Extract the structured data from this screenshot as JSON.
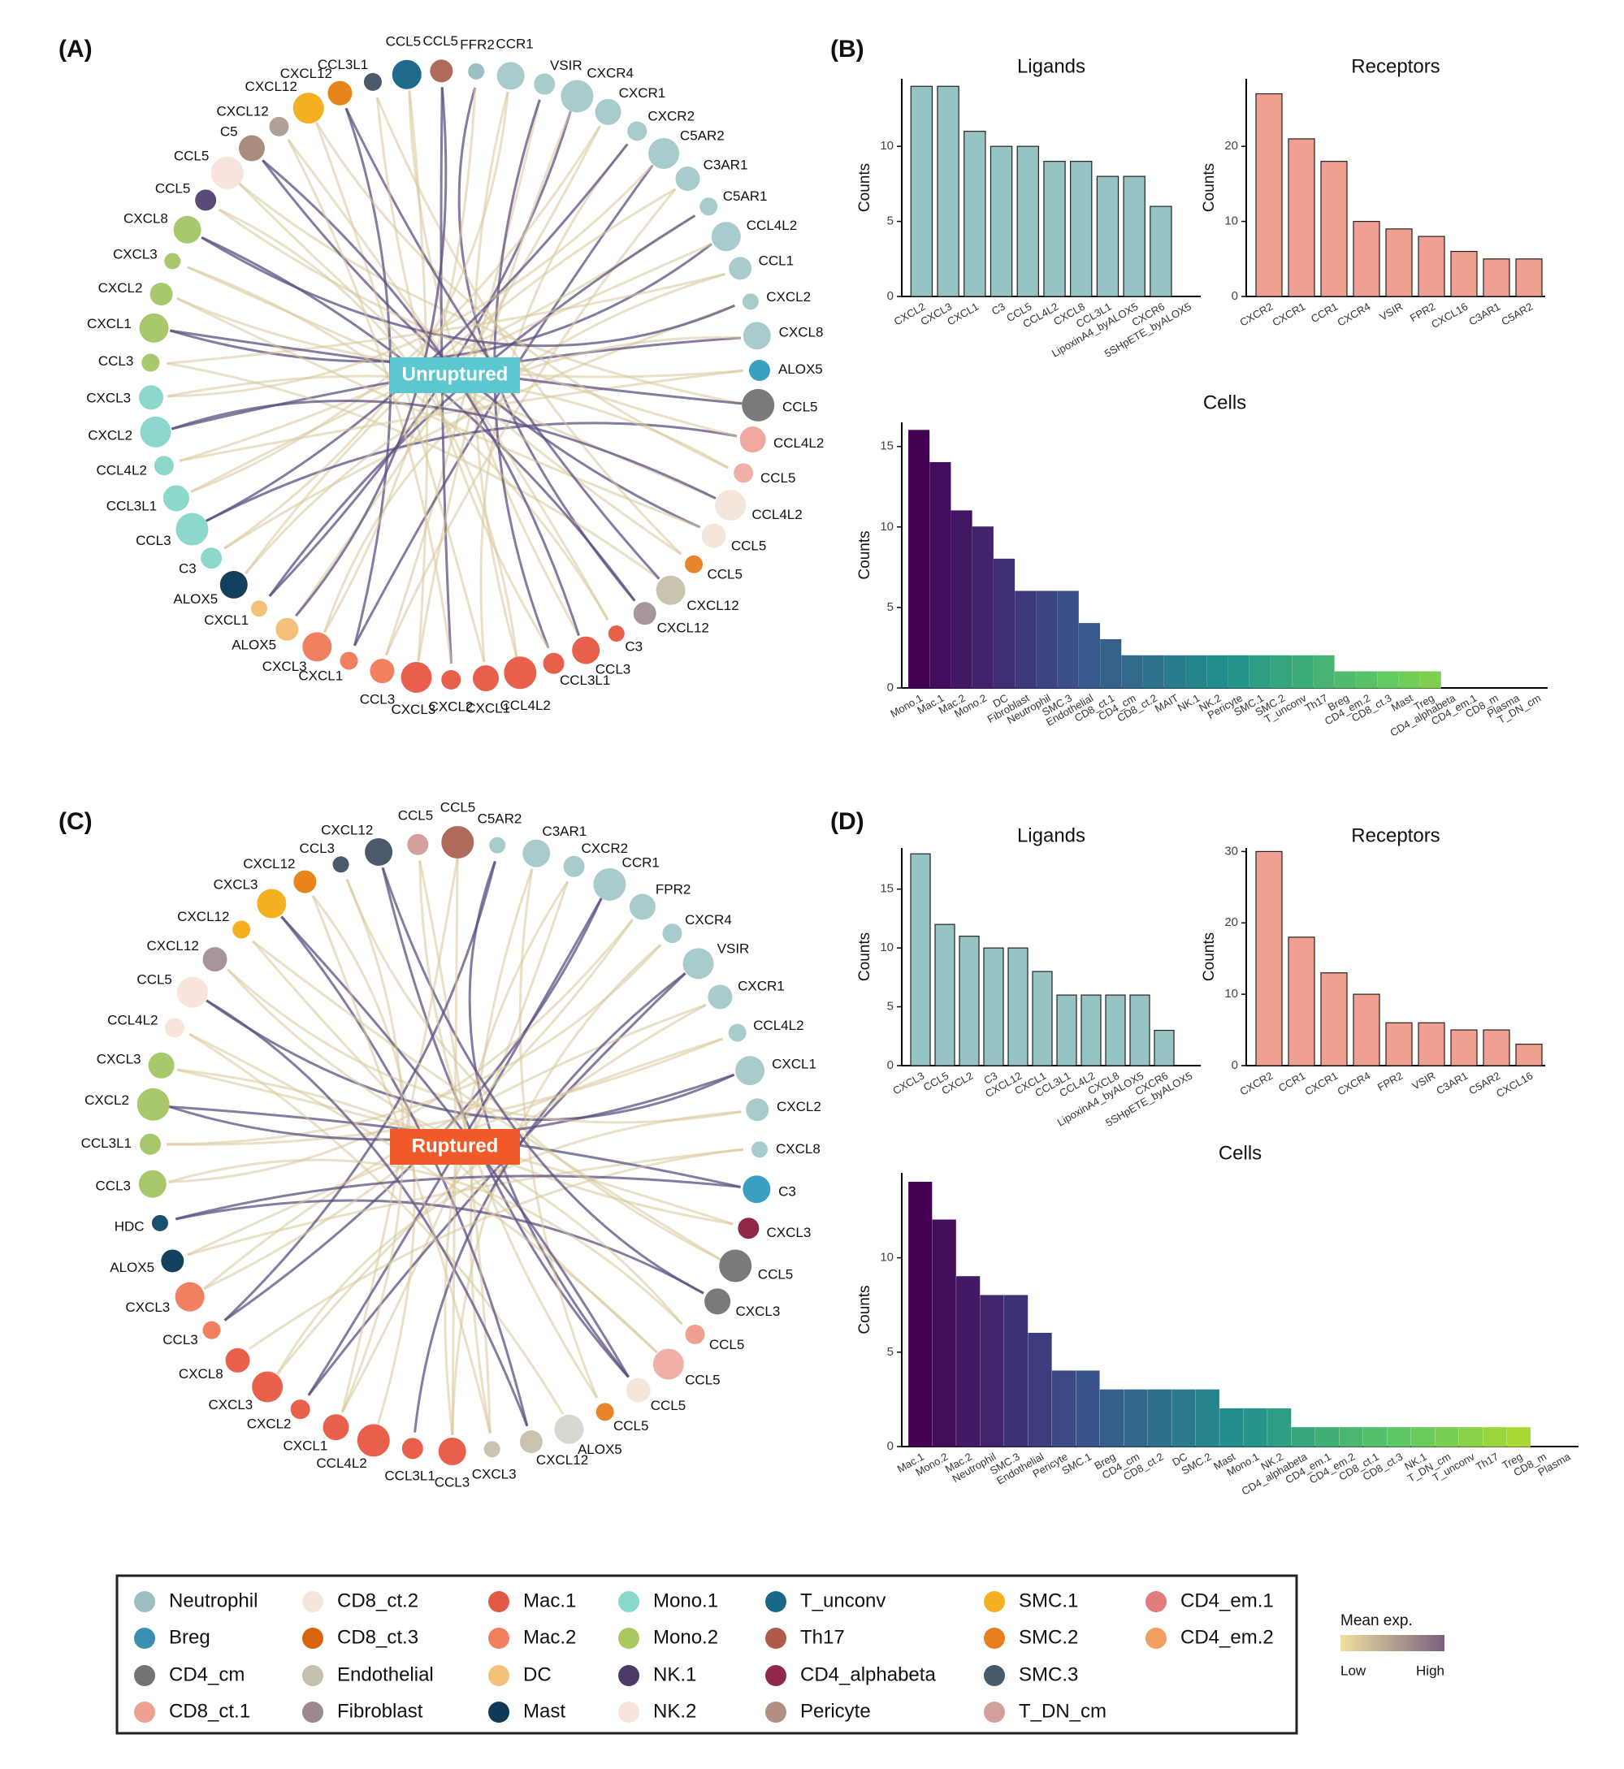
{
  "panels": [
    "(A)",
    "(B)",
    "(C)",
    "(D)"
  ],
  "circles": [
    {
      "label": "Unruptured",
      "nodes": [
        {
          "label": "FFR2",
          "color": "#9dbfc4"
        },
        {
          "label": "CCR1",
          "color": "#a8cccc"
        },
        {
          "label": "VSIR",
          "color": "#a8cccc"
        },
        {
          "label": "CXCR4",
          "color": "#a8cccc"
        },
        {
          "label": "CXCR1",
          "color": "#a8cccc"
        },
        {
          "label": "CXCR2",
          "color": "#a8cccc"
        },
        {
          "label": "C5AR2",
          "color": "#a8cccc"
        },
        {
          "label": "C3AR1",
          "color": "#a8cccc"
        },
        {
          "label": "C5AR1",
          "color": "#a8cccc"
        },
        {
          "label": "CCL4L2",
          "color": "#a8cccc"
        },
        {
          "label": "CCL1",
          "color": "#a8cccc"
        },
        {
          "label": "CXCL2",
          "color": "#a8cccc"
        },
        {
          "label": "CXCL8",
          "color": "#a8cccc"
        },
        {
          "label": "ALOX5",
          "color": "#3a9fc0"
        },
        {
          "label": "CCL5",
          "color": "#7a7a7a"
        },
        {
          "label": "CCL4L2",
          "color": "#f0a8a0"
        },
        {
          "label": "CCL5",
          "color": "#f0b0a8"
        },
        {
          "label": "CCL4L2",
          "color": "#f5e6dc"
        },
        {
          "label": "CCL5",
          "color": "#f5e6dc"
        },
        {
          "label": "CCL5",
          "color": "#e8842c"
        },
        {
          "label": "CXCL12",
          "color": "#c8c4b0"
        },
        {
          "label": "CXCL12",
          "color": "#a8949c"
        },
        {
          "label": "C3",
          "color": "#e8604c"
        },
        {
          "label": "CCL3",
          "color": "#e8604c"
        },
        {
          "label": "CCL3L1",
          "color": "#e8604c"
        },
        {
          "label": "CCL4L2",
          "color": "#e8604c"
        },
        {
          "label": "CXCL1",
          "color": "#e8604c"
        },
        {
          "label": "CXCL2",
          "color": "#e8604c"
        },
        {
          "label": "CXCL3",
          "color": "#e8604c"
        },
        {
          "label": "CCL3",
          "color": "#f08060"
        },
        {
          "label": "CXCL1",
          "color": "#f08060"
        },
        {
          "label": "CXCL3",
          "color": "#f08060"
        },
        {
          "label": "ALOX5",
          "color": "#f5c07a"
        },
        {
          "label": "CXCL1",
          "color": "#f5c07a"
        },
        {
          "label": "ALOX5",
          "color": "#12405e"
        },
        {
          "label": "C3",
          "color": "#8cd8cc"
        },
        {
          "label": "CCL3",
          "color": "#8cd8cc"
        },
        {
          "label": "CCL3L1",
          "color": "#8cd8cc"
        },
        {
          "label": "CCL4L2",
          "color": "#8cd8cc"
        },
        {
          "label": "CXCL2",
          "color": "#8cd8cc"
        },
        {
          "label": "CXCL3",
          "color": "#8cd8cc"
        },
        {
          "label": "CCL3",
          "color": "#a8c86c"
        },
        {
          "label": "CXCL1",
          "color": "#a8c86c"
        },
        {
          "label": "CXCL2",
          "color": "#a8c86c"
        },
        {
          "label": "CXCL3",
          "color": "#a8c86c"
        },
        {
          "label": "CXCL8",
          "color": "#a8c86c"
        },
        {
          "label": "CCL5",
          "color": "#5a4a78"
        },
        {
          "label": "CCL5",
          "color": "#f8e4dc"
        },
        {
          "label": "C5",
          "color": "#a88c80"
        },
        {
          "label": "CXCL12",
          "color": "#b0a098"
        },
        {
          "label": "CXCL12",
          "color": "#f5b020"
        },
        {
          "label": "CXCL12",
          "color": "#e8841c"
        },
        {
          "label": "CCL3L1",
          "color": "#4a5a6a"
        },
        {
          "label": "CCL5",
          "color": "#1e6a8a"
        },
        {
          "label": "CCL5",
          "color": "#b06a5a"
        }
      ]
    },
    {
      "label": "Ruptured",
      "nodes": [
        {
          "label": "C5AR2",
          "color": "#a8cccc"
        },
        {
          "label": "C3AR1",
          "color": "#a8cccc"
        },
        {
          "label": "CXCR2",
          "color": "#a8cccc"
        },
        {
          "label": "CCR1",
          "color": "#a8cccc"
        },
        {
          "label": "FPR2",
          "color": "#a8cccc"
        },
        {
          "label": "CXCR4",
          "color": "#a8cccc"
        },
        {
          "label": "VSIR",
          "color": "#a8cccc"
        },
        {
          "label": "CXCR1",
          "color": "#a8cccc"
        },
        {
          "label": "CCL4L2",
          "color": "#a8cccc"
        },
        {
          "label": "CXCL1",
          "color": "#a8cccc"
        },
        {
          "label": "CXCL2",
          "color": "#a8cccc"
        },
        {
          "label": "CXCL8",
          "color": "#a8cccc"
        },
        {
          "label": "C3",
          "color": "#3a9fc0"
        },
        {
          "label": "CXCL3",
          "color": "#902848"
        },
        {
          "label": "CCL5",
          "color": "#7a7a7a"
        },
        {
          "label": "CXCL3",
          "color": "#7a7a7a"
        },
        {
          "label": "CCL5",
          "color": "#f0a090"
        },
        {
          "label": "CCL5",
          "color": "#f0b0a8"
        },
        {
          "label": "CCL5",
          "color": "#f5e6dc"
        },
        {
          "label": "CCL5",
          "color": "#e8842c"
        },
        {
          "label": "ALOX5",
          "color": "#d8d8d0"
        },
        {
          "label": "CXCL12",
          "color": "#c8c4b0"
        },
        {
          "label": "CXCL3",
          "color": "#c8c4b0"
        },
        {
          "label": "CCL3",
          "color": "#e8604c"
        },
        {
          "label": "CCL3L1",
          "color": "#e8604c"
        },
        {
          "label": "CCL4L2",
          "color": "#e8604c"
        },
        {
          "label": "CXCL1",
          "color": "#e8604c"
        },
        {
          "label": "CXCL2",
          "color": "#e8604c"
        },
        {
          "label": "CXCL3",
          "color": "#e8604c"
        },
        {
          "label": "CXCL8",
          "color": "#e8604c"
        },
        {
          "label": "CCL3",
          "color": "#f08060"
        },
        {
          "label": "CXCL3",
          "color": "#f08060"
        },
        {
          "label": "ALOX5",
          "color": "#12405e"
        },
        {
          "label": "HDC",
          "color": "#1a5070"
        },
        {
          "label": "CCL3",
          "color": "#a8c86c"
        },
        {
          "label": "CCL3L1",
          "color": "#a8c86c"
        },
        {
          "label": "CXCL2",
          "color": "#a8c86c"
        },
        {
          "label": "CXCL3",
          "color": "#a8c86c"
        },
        {
          "label": "CCL4L2",
          "color": "#f8e4dc"
        },
        {
          "label": "CCL5",
          "color": "#f8e4dc"
        },
        {
          "label": "CXCL12",
          "color": "#a8949c"
        },
        {
          "label": "CXCL12",
          "color": "#f5b020"
        },
        {
          "label": "CXCL3",
          "color": "#f5b020"
        },
        {
          "label": "CXCL12",
          "color": "#e8841c"
        },
        {
          "label": "CCL3",
          "color": "#4a5a6a"
        },
        {
          "label": "CXCL12",
          "color": "#4a5a6a"
        },
        {
          "label": "CCL5",
          "color": "#d4a09c"
        },
        {
          "label": "CCL5",
          "color": "#b06a5a"
        }
      ]
    }
  ],
  "chart_data": [
    {
      "type": "bar",
      "title": "Ligands",
      "y_label": "Counts",
      "color": "#96c4c4",
      "categories": [
        "CXCL2",
        "CXCL3",
        "CXCL1",
        "C3",
        "CCL5",
        "CCL4L2",
        "CXCL8",
        "CCL3L1",
        "LipoxinA4_byALOX5",
        "CXCR6",
        "5SHpETE_byALOX5"
      ],
      "values": [
        14,
        14,
        11,
        10,
        10,
        9,
        9,
        8,
        8,
        6,
        0
      ],
      "ylim": [
        0,
        14.5
      ],
      "yticks": [
        0,
        5,
        10
      ]
    },
    {
      "type": "bar",
      "title": "Receptors",
      "y_label": "Counts",
      "color": "#f0a090",
      "categories": [
        "CXCR2",
        "CXCR1",
        "CCR1",
        "CXCR4",
        "VSIR",
        "FPR2",
        "CXCL16",
        "C3AR1",
        "C5AR2"
      ],
      "values": [
        27,
        21,
        18,
        10,
        9,
        8,
        6,
        5,
        5
      ],
      "ylim": [
        0,
        29
      ],
      "yticks": [
        0,
        10,
        20
      ]
    },
    {
      "type": "bar",
      "title": "Cells",
      "y_label": "Counts",
      "palette": [
        "#440154",
        "#3b528b",
        "#21918c",
        "#5ec962",
        "#c8e020"
      ],
      "categories": [
        "Mono.1",
        "Mac.1",
        "Mac.2",
        "Mono.2",
        "DC",
        "Fibroblast",
        "Neutrophil",
        "SMC.3",
        "Endothelial",
        "CD8_ct.1",
        "CD4_cm",
        "CD8_ct.2",
        "MAIT",
        "NK.1",
        "NK.2",
        "Pericyte",
        "SMC.1",
        "SMC.2",
        "T_unconv",
        "Th17",
        "Breg",
        "CD4_em.2",
        "CD8_ct.3",
        "Mast",
        "Treg",
        "CD4_alphabeta",
        "CD4_em.1",
        "CD8_m",
        "Plasma",
        "T_DN_cm"
      ],
      "values": [
        16,
        14,
        11,
        10,
        8,
        6,
        6,
        6,
        4,
        3,
        2,
        2,
        2,
        2,
        2,
        2,
        2,
        2,
        2,
        2,
        1,
        1,
        1,
        1,
        1,
        0,
        0,
        0,
        0,
        0
      ],
      "ylim": [
        0,
        16.5
      ],
      "yticks": [
        0,
        5,
        10,
        15
      ]
    },
    {
      "type": "bar",
      "title": "Ligands",
      "y_label": "Counts",
      "color": "#96c4c4",
      "categories": [
        "CXCL3",
        "CCL5",
        "CXCL2",
        "C3",
        "CXCL12",
        "CXCL1",
        "CCL3L1",
        "CCL4L2",
        "CXCL8",
        "LipoxinA4_byALOX5",
        "CXCR6",
        "5SHpETE_byALOX5"
      ],
      "values": [
        18,
        12,
        11,
        10,
        10,
        8,
        6,
        6,
        6,
        6,
        3,
        0
      ],
      "ylim": [
        0,
        18.5
      ],
      "yticks": [
        0,
        5,
        10,
        15
      ]
    },
    {
      "type": "bar",
      "title": "Receptors",
      "y_label": "Counts",
      "color": "#f0a090",
      "categories": [
        "CXCR2",
        "CCR1",
        "CXCR1",
        "CXCR4",
        "FPR2",
        "VSIR",
        "C3AR1",
        "C5AR2",
        "CXCL16"
      ],
      "values": [
        30,
        18,
        13,
        10,
        6,
        6,
        5,
        5,
        3
      ],
      "ylim": [
        0,
        30.5
      ],
      "yticks": [
        0,
        10,
        20,
        30
      ]
    },
    {
      "type": "bar",
      "title": "Cells",
      "y_label": "Counts",
      "palette": [
        "#440154",
        "#3b528b",
        "#21918c",
        "#5ec962",
        "#c8e020"
      ],
      "categories": [
        "Mac.1",
        "Mono.2",
        "Mac.2",
        "Neutrophil",
        "SMC.3",
        "Endothelial",
        "Pericyte",
        "SMC.1",
        "Breg",
        "CD4_cm",
        "CD8_ct.2",
        "DC",
        "SMC.2",
        "Mast",
        "Mono.1",
        "NK.2",
        "CD4_alphabeta",
        "CD4_em.1",
        "CD4_em.2",
        "CD8_ct.1",
        "CD8_ct.3",
        "NK.1",
        "T_DN_cm",
        "T_unconv",
        "Th17",
        "Treg",
        "CD8_m",
        "Plasma"
      ],
      "values": [
        14,
        12,
        9,
        8,
        8,
        6,
        4,
        4,
        3,
        3,
        3,
        3,
        3,
        2,
        2,
        2,
        1,
        1,
        1,
        1,
        1,
        1,
        1,
        1,
        1,
        1,
        0,
        0
      ],
      "ylim": [
        0,
        14.5
      ],
      "yticks": [
        0,
        5,
        10
      ]
    }
  ],
  "legend": {
    "items": [
      {
        "name": "Neutrophil",
        "color": "#9dbfc4"
      },
      {
        "name": "Breg",
        "color": "#3a8fb0"
      },
      {
        "name": "CD4_cm",
        "color": "#737373"
      },
      {
        "name": "CD8_ct.1",
        "color": "#f0a090"
      },
      {
        "name": "CD8_ct.2",
        "color": "#f5e6dc"
      },
      {
        "name": "CD8_ct.3",
        "color": "#d8640c"
      },
      {
        "name": "Endothelial",
        "color": "#c4c0ac"
      },
      {
        "name": "Fibroblast",
        "color": "#9c8890"
      },
      {
        "name": "Mac.1",
        "color": "#e05a44"
      },
      {
        "name": "Mac.2",
        "color": "#f08060"
      },
      {
        "name": "DC",
        "color": "#f5c07a"
      },
      {
        "name": "Mast",
        "color": "#0e3a58"
      },
      {
        "name": "Mono.1",
        "color": "#88d8cc"
      },
      {
        "name": "Mono.2",
        "color": "#a8c860"
      },
      {
        "name": "NK.1",
        "color": "#4a3a6a"
      },
      {
        "name": "NK.2",
        "color": "#f8e4dc"
      },
      {
        "name": "T_unconv",
        "color": "#1a6888"
      },
      {
        "name": "Th17",
        "color": "#b05a4a"
      },
      {
        "name": "CD4_alphabeta",
        "color": "#902848"
      },
      {
        "name": "Pericyte",
        "color": "#b09080"
      },
      {
        "name": "SMC.1",
        "color": "#f5b020"
      },
      {
        "name": "SMC.2",
        "color": "#e87e1c"
      },
      {
        "name": "SMC.3",
        "color": "#44596a"
      },
      {
        "name": "T_DN_cm",
        "color": "#d4a09c"
      },
      {
        "name": "CD4_em.1",
        "color": "#e07c7c"
      },
      {
        "name": "CD4_em.2",
        "color": "#f0a060"
      }
    ],
    "colorbar": {
      "title": "Mean exp.",
      "low": "Low",
      "high": "High",
      "colors": [
        "#f0e0a0",
        "#7a6080"
      ]
    }
  }
}
